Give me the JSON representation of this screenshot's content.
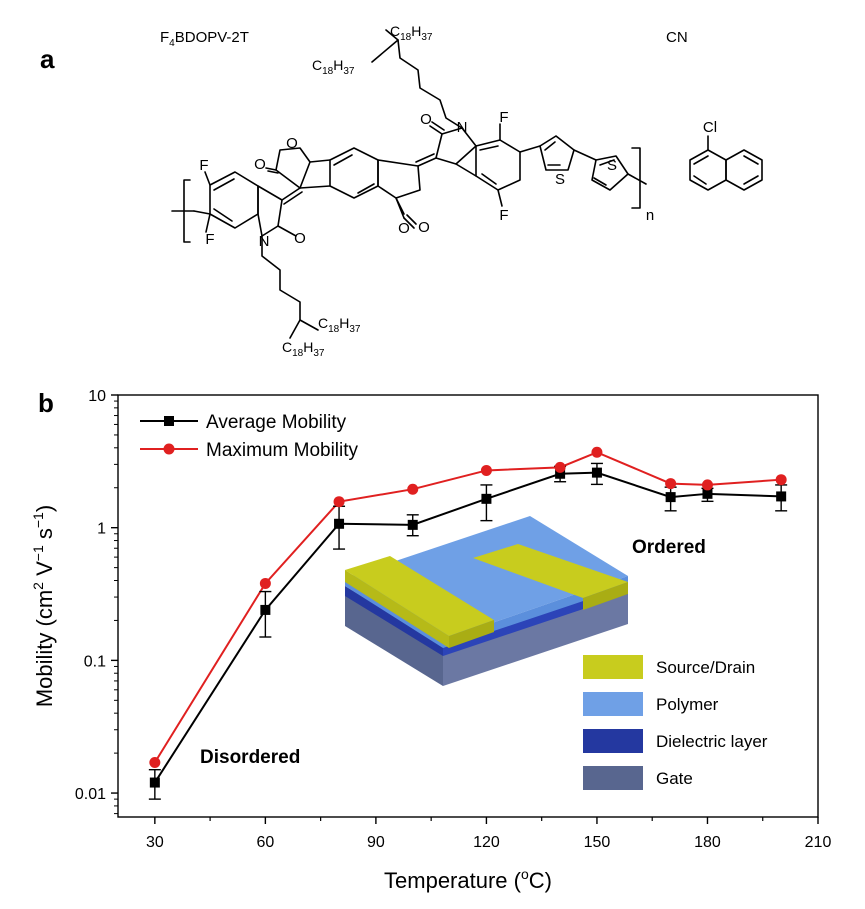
{
  "panel_a": {
    "label": "a",
    "polymer_name_parts": [
      "F",
      "4",
      "BDOPV-2T"
    ],
    "solvent_name": "CN",
    "atoms": {
      "F": "F",
      "N": "N",
      "O": "O",
      "S": "S",
      "Cl": "Cl",
      "n": "n",
      "C18H37": [
        "C",
        "18",
        "H",
        "37"
      ]
    }
  },
  "panel_b": {
    "label": "b",
    "annotations": {
      "disordered": "Disordered",
      "ordered": "Ordered"
    },
    "device_legend": [
      {
        "label": "Source/Drain",
        "color": "#c8cc1e"
      },
      {
        "label": "Polymer",
        "color": "#6fa0e6"
      },
      {
        "label": "Dielectric layer",
        "color": "#2438a0"
      },
      {
        "label": "Gate",
        "color": "#58668f"
      }
    ]
  },
  "chart_data": {
    "type": "line",
    "xlabel_parts": [
      "Temperature (",
      "o",
      "C)"
    ],
    "ylabel_parts": [
      "Mobility (cm",
      "2",
      " V",
      "−1",
      " s",
      "−1",
      ")"
    ],
    "x_ticks": [
      30,
      60,
      90,
      120,
      150,
      180,
      210
    ],
    "y_ticks": [
      0.01,
      0.1,
      1,
      10
    ],
    "y_tick_labels": [
      "0.01",
      "0.1",
      "1",
      "10"
    ],
    "xlim": [
      20,
      210
    ],
    "ylim": [
      0.0066,
      10
    ],
    "y_scale": "log",
    "legend_position": "top-left",
    "x": [
      30,
      60,
      80,
      100,
      120,
      140,
      150,
      170,
      180,
      200
    ],
    "series": [
      {
        "name": "Average Mobility",
        "color": "#000000",
        "marker": "square",
        "values": [
          0.012,
          0.24,
          1.07,
          1.05,
          1.65,
          2.55,
          2.6,
          1.7,
          1.8,
          1.72
        ],
        "err_low": [
          0.009,
          0.15,
          0.69,
          0.87,
          1.13,
          2.22,
          2.12,
          1.34,
          1.58,
          1.34
        ],
        "err_high": [
          0.015,
          0.33,
          1.45,
          1.25,
          2.1,
          2.9,
          3.05,
          2.02,
          1.98,
          2.1
        ]
      },
      {
        "name": "Maximum Mobility",
        "color": "#e02020",
        "marker": "circle",
        "values": [
          0.017,
          0.38,
          1.57,
          1.95,
          2.7,
          2.85,
          3.7,
          2.15,
          2.1,
          2.3
        ]
      }
    ]
  }
}
